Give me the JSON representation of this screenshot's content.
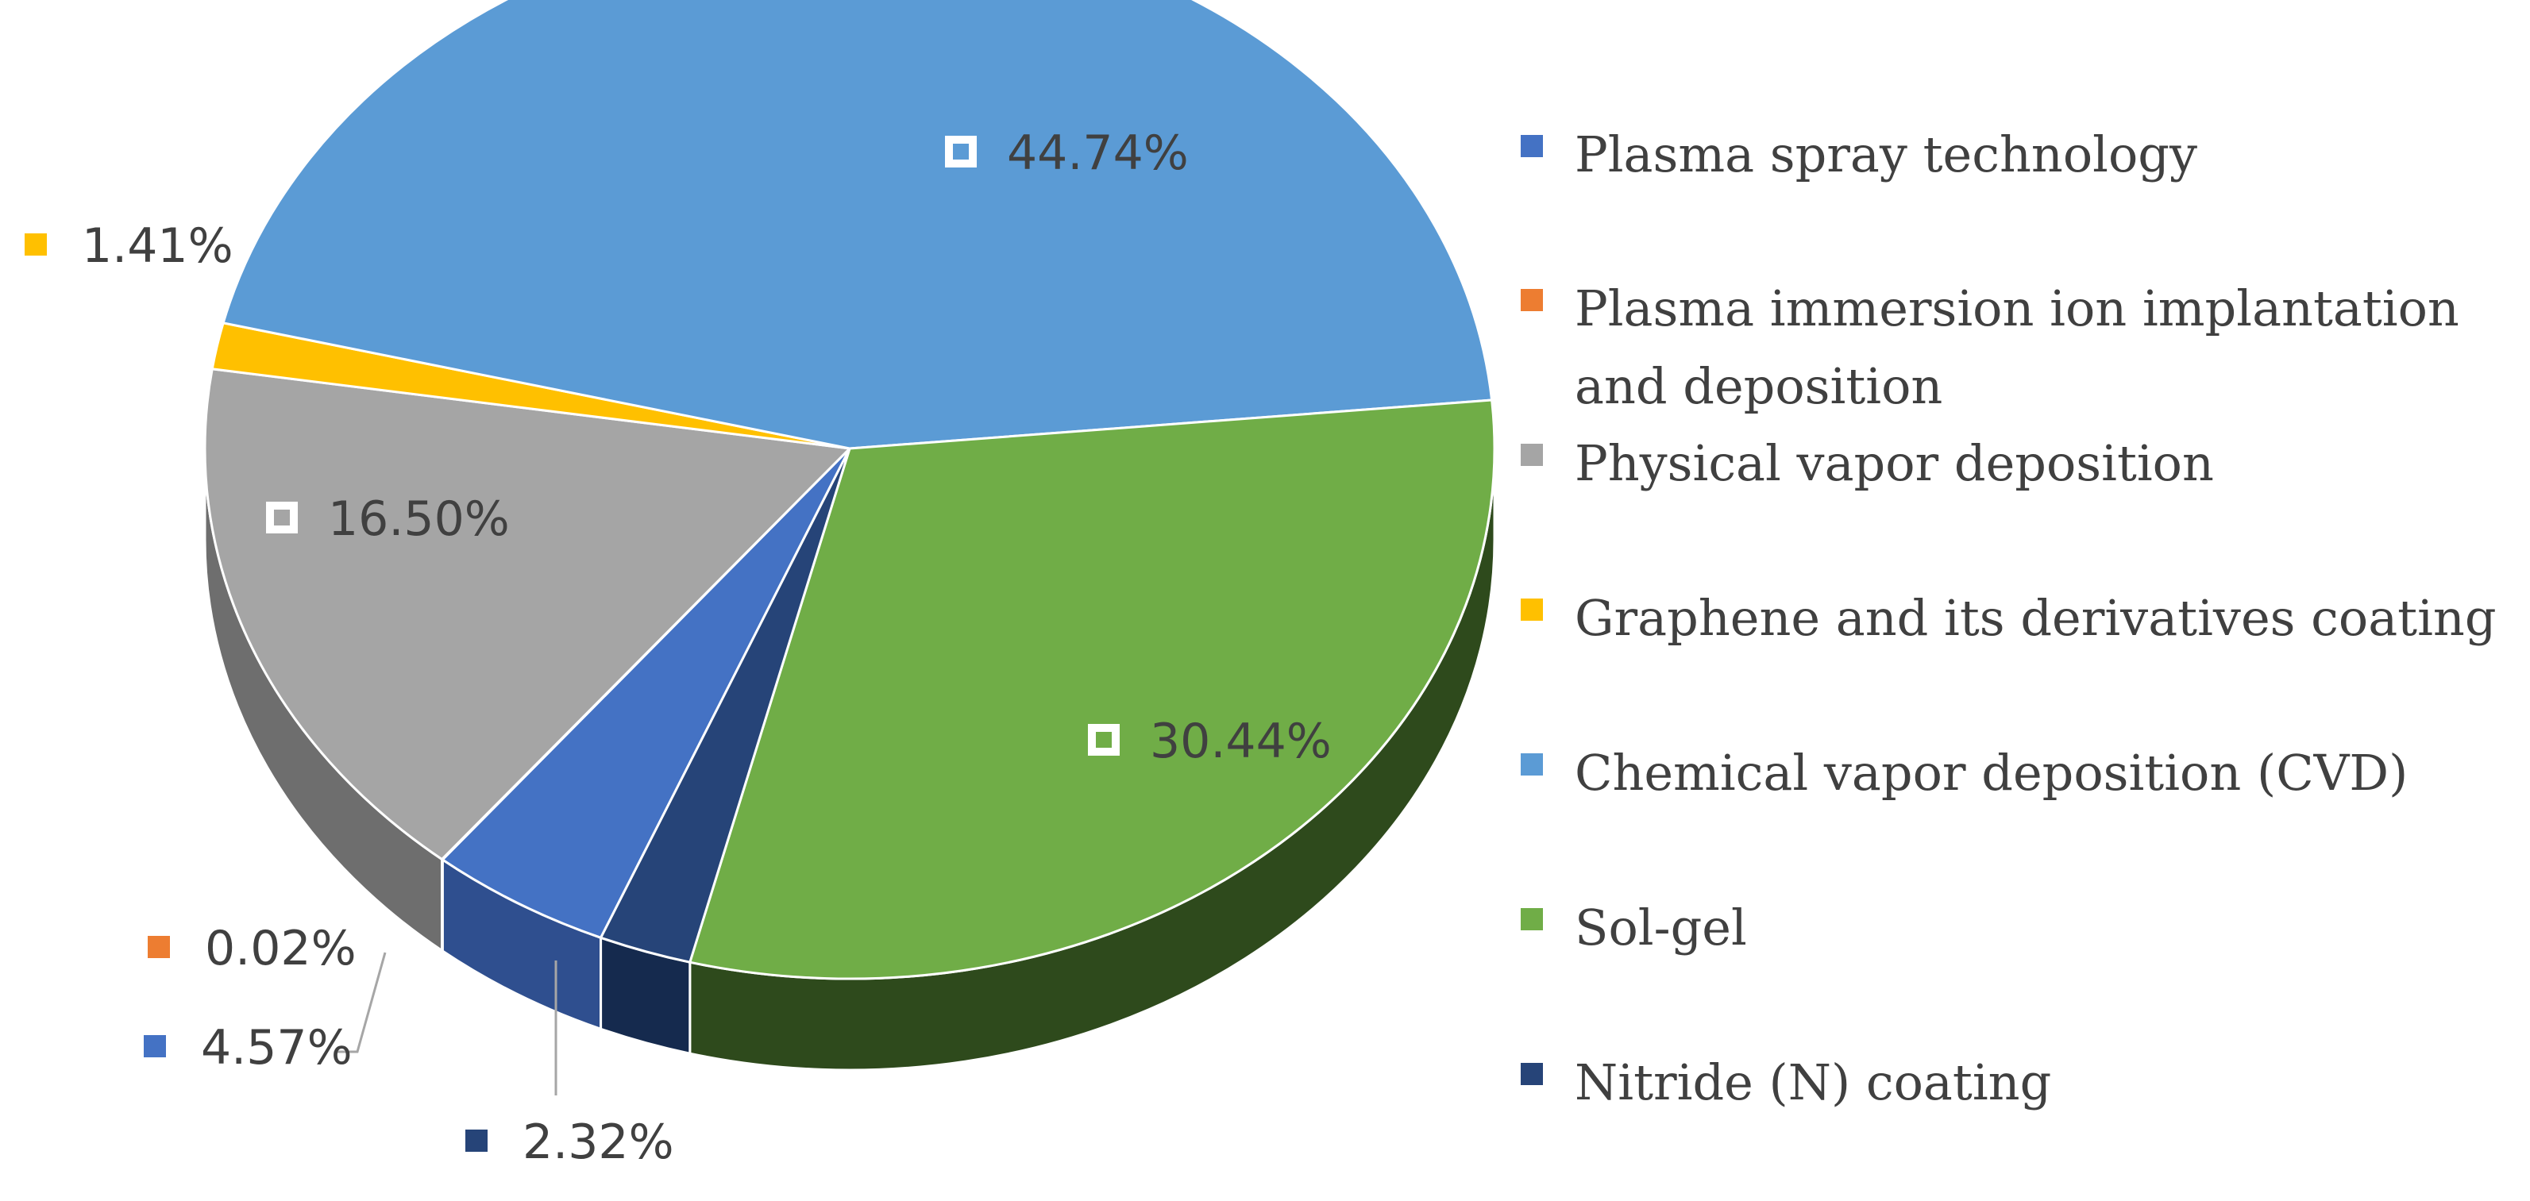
{
  "chart_data": {
    "type": "pie",
    "style": "3d",
    "legend_position": "right",
    "title": "",
    "slices": [
      {
        "label": "Plasma spray technology",
        "value": 4.57,
        "display": "4.57%",
        "color": "#4472C4",
        "side_color": "#2F4F8F"
      },
      {
        "label": "Plasma immersion ion implantation and deposition",
        "value": 0.02,
        "display": "0.02%",
        "color": "#ED7D31",
        "side_color": "#A9561E"
      },
      {
        "label": "Physical vapor deposition",
        "value": 16.5,
        "display": "16.50%",
        "color": "#A5A5A5",
        "side_color": "#6E6E6E"
      },
      {
        "label": "Graphene and its derivatives coating",
        "value": 1.41,
        "display": "1.41%",
        "color": "#FFC000",
        "side_color": "#B38600"
      },
      {
        "label": "Chemical vapor deposition (CVD)",
        "value": 44.74,
        "display": "44.74%",
        "color": "#5B9BD5",
        "side_color": "#3D6E9C"
      },
      {
        "label": "Sol-gel",
        "value": 30.44,
        "display": "30.44%",
        "color": "#70AD47",
        "side_color": "#2E4A1C"
      },
      {
        "label": "Nitride (N) coating",
        "value": 2.32,
        "display": "2.32%",
        "color": "#264478",
        "side_color": "#152A4E"
      }
    ]
  }
}
